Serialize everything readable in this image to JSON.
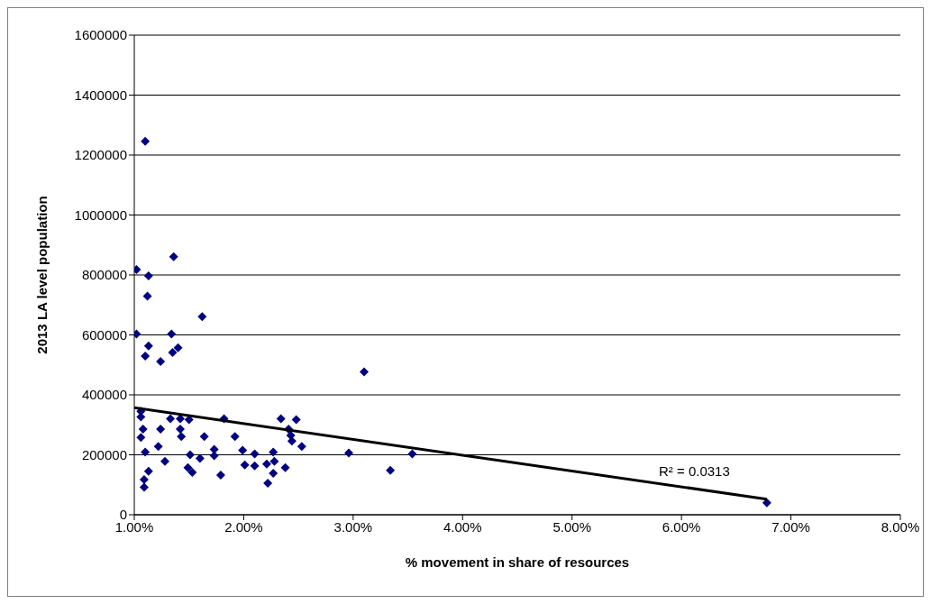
{
  "chart_data": {
    "type": "scatter",
    "xlabel": "% movement in share of resources",
    "ylabel": "2013 LA level population",
    "xlim": [
      1,
      8
    ],
    "xticks": [
      {
        "value": 1,
        "label": "1.00%"
      },
      {
        "value": 2,
        "label": "2.00%"
      },
      {
        "value": 3,
        "label": "3.00%"
      },
      {
        "value": 4,
        "label": "4.00%"
      },
      {
        "value": 5,
        "label": "5.00%"
      },
      {
        "value": 6,
        "label": "6.00%"
      },
      {
        "value": 7,
        "label": "7.00%"
      },
      {
        "value": 8,
        "label": "8.00%"
      }
    ],
    "ylim": [
      0,
      1600000
    ],
    "yticks": [
      0,
      200000,
      400000,
      600000,
      800000,
      1000000,
      1200000,
      1400000,
      1600000
    ],
    "grid": "y",
    "legend": false,
    "series": [
      {
        "marker": "diamond",
        "color": "#000080",
        "x": [
          1.1,
          1.36,
          1.02,
          1.13,
          1.12,
          1.62,
          1.02,
          1.34,
          1.13,
          1.1,
          1.24,
          1.35,
          1.4,
          3.1,
          1.06,
          1.06,
          1.33,
          1.42,
          1.5,
          1.82,
          1.08,
          1.24,
          1.42,
          1.06,
          1.43,
          1.64,
          1.92,
          1.22,
          1.1,
          1.73,
          1.51,
          1.6,
          1.73,
          1.99,
          2.1,
          2.27,
          1.28,
          1.49,
          1.53,
          1.13,
          1.09,
          1.09,
          1.79,
          2.01,
          2.1,
          2.21,
          2.28,
          2.27,
          2.22,
          2.38,
          2.34,
          2.48,
          2.41,
          2.43,
          2.44,
          2.53,
          2.96,
          3.34,
          3.54,
          6.78
        ],
        "values": [
          1246000,
          861000,
          818000,
          797000,
          729000,
          661000,
          603000,
          603000,
          563000,
          529000,
          511000,
          541000,
          557000,
          477000,
          345000,
          326000,
          320000,
          320000,
          317000,
          320000,
          286000,
          286000,
          286000,
          258000,
          261000,
          261000,
          261000,
          228000,
          209000,
          218000,
          200000,
          188000,
          197000,
          215000,
          203000,
          209000,
          178000,
          157000,
          141000,
          145000,
          117000,
          92000,
          132000,
          166000,
          163000,
          169000,
          178000,
          138000,
          105000,
          157000,
          320000,
          317000,
          286000,
          265000,
          246000,
          228000,
          206000,
          148000,
          203000,
          40000
        ]
      },
      {
        "type": "line",
        "color": "#000000",
        "x": [
          1.0,
          6.78
        ],
        "values": [
          357000,
          52000
        ]
      }
    ],
    "annotations": [
      "R² = 0.0313"
    ]
  }
}
